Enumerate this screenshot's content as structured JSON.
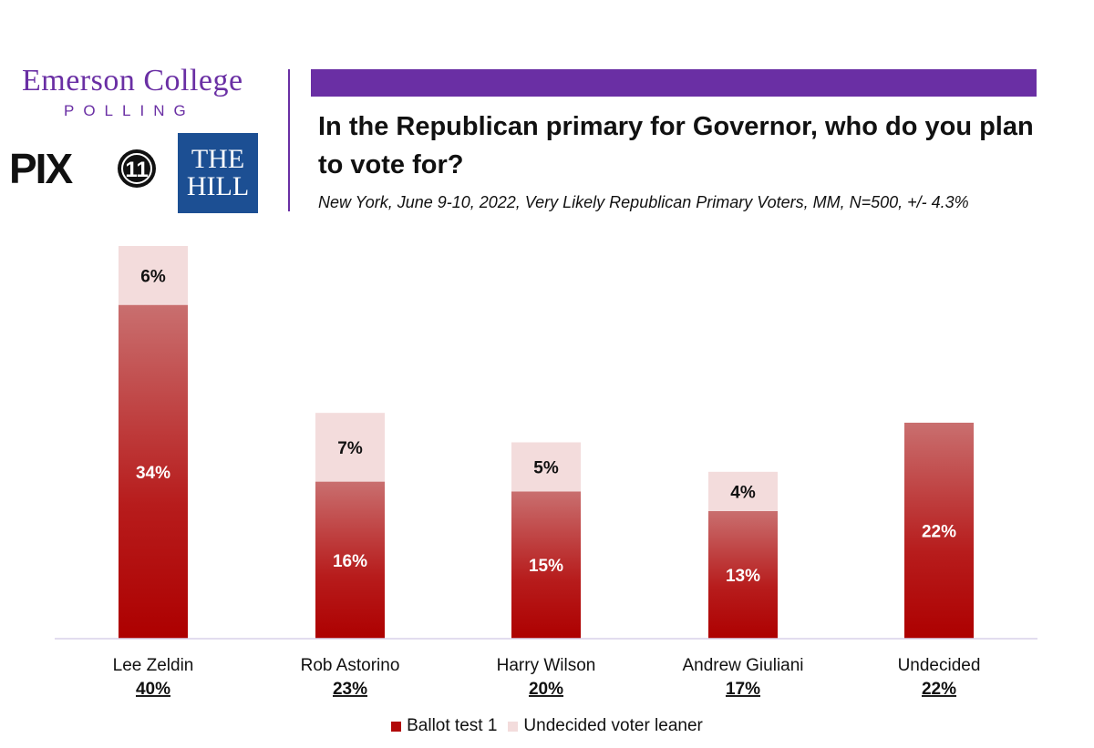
{
  "branding": {
    "emerson_name": "Emerson College",
    "emerson_polling": "POLLING",
    "pix": "PIX",
    "pix_number": "11",
    "hill_line1": "THE",
    "hill_line2": "HILL"
  },
  "colors": {
    "accent_purple": "#6a2fa4",
    "ballot_red": "#b10a0a",
    "leaner_pink": "#f3dcdc",
    "hill_blue": "#1c4f93"
  },
  "chart_data": {
    "type": "bar",
    "stacked": true,
    "title": "In the Republican primary for Governor, who do you plan to vote for?",
    "subtitle": "New York, June 9-10, 2022, Very Likely Republican Primary Voters, MM, N=500, +/- 4.3%",
    "categories": [
      "Lee Zeldin",
      "Rob Astorino",
      "Harry Wilson",
      "Andrew Giuliani",
      "Undecided"
    ],
    "totals": [
      "40%",
      "23%",
      "20%",
      "17%",
      "22%"
    ],
    "series": [
      {
        "name": "Ballot test 1",
        "values": [
          34,
          16,
          15,
          13,
          22
        ],
        "labels": [
          "34%",
          "16%",
          "15%",
          "13%",
          "22%"
        ],
        "color": "#b10a0a"
      },
      {
        "name": "Undecided voter leaner",
        "values": [
          6,
          7,
          5,
          4,
          0
        ],
        "labels": [
          "6%",
          "7%",
          "5%",
          "4%",
          ""
        ],
        "color": "#f3dcdc"
      }
    ],
    "ylim": [
      0,
      40
    ],
    "grid": false,
    "legend": "bottom"
  }
}
